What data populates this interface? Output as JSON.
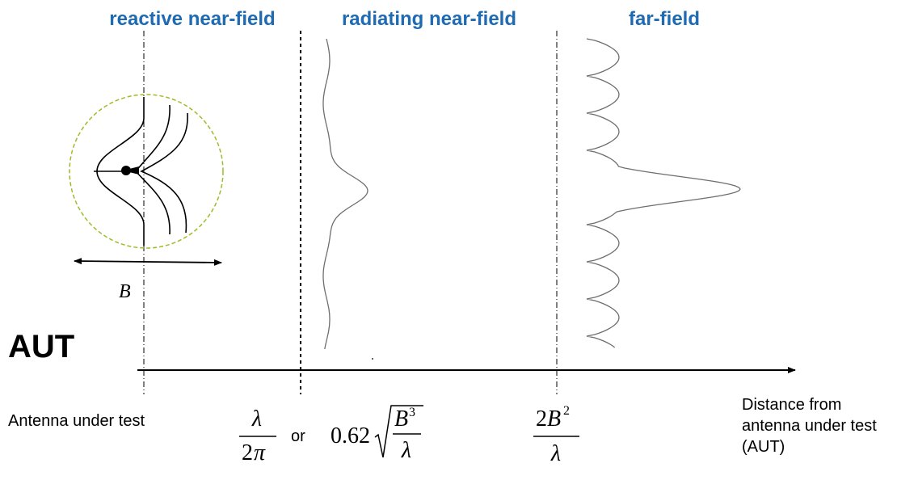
{
  "colors": {
    "region_label": "#1e6ab3",
    "boundary_line": "#000000",
    "sphere_outline": "#9cbd2a",
    "pattern_curve": "#6e6e6e"
  },
  "regions": {
    "reactive_near_field": "reactive near-field",
    "radiating_near_field": "radiating near-field",
    "far_field": "far-field"
  },
  "aut": {
    "label": "AUT",
    "caption": "Antenna under test",
    "dimension_symbol": "B"
  },
  "boundaries": {
    "reactive": {
      "numerator": "λ",
      "denominator_coef": "2",
      "denominator_sym": "π"
    },
    "connector": "or",
    "radiating": {
      "coefficient": "0.62",
      "numerator": "B",
      "exponent": "3",
      "denominator": "λ"
    },
    "far": {
      "numerator_coef": "2",
      "numerator_sym": "B",
      "exponent": "2",
      "denominator": "λ"
    }
  },
  "axis": {
    "label_lines": [
      "Distance from",
      "antenna under test",
      "(AUT)"
    ]
  }
}
